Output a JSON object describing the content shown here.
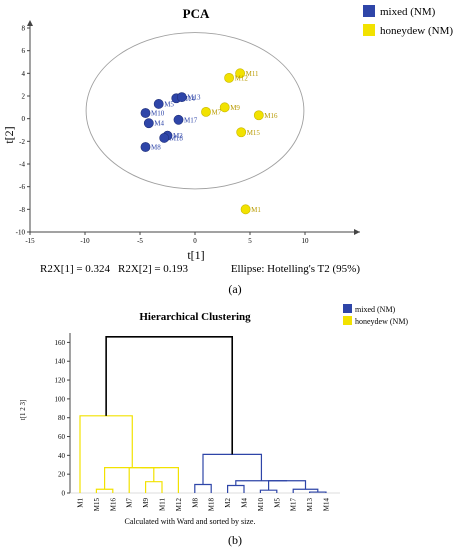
{
  "colors": {
    "mixed": "#2e45a8",
    "honeydew": "#f2e200",
    "honeydew_label": "#b89a00",
    "black": "#000000",
    "axis": "#444444"
  },
  "chart_data": [
    {
      "type": "scatter",
      "title": "PCA",
      "xlabel": "t[1]",
      "ylabel": "t[2]",
      "xlim": [
        -15,
        15
      ],
      "ylim": [
        -10,
        8
      ],
      "xticks": [
        -15,
        -10,
        -5,
        0,
        5,
        10
      ],
      "yticks": [
        8,
        6,
        4,
        2,
        0,
        -2,
        -4,
        -6,
        -8,
        -10
      ],
      "legend": {
        "placement": "top-right",
        "entries": [
          "mixed (NM)",
          "honeydew (NM)"
        ]
      },
      "ellipse_label": "Ellipse: Hotelling's T2 (95%)",
      "stats": [
        "R2X[1] = 0.324",
        "R2X[2] = 0.193"
      ],
      "series": [
        {
          "name": "mixed (NM)",
          "points": [
            {
              "label": "M14",
              "x": -1.7,
              "y": 1.8
            },
            {
              "label": "M13",
              "x": -1.2,
              "y": 1.9
            },
            {
              "label": "M5",
              "x": -3.3,
              "y": 1.3
            },
            {
              "label": "M10",
              "x": -4.5,
              "y": 0.5
            },
            {
              "label": "M4",
              "x": -4.2,
              "y": -0.4
            },
            {
              "label": "M17",
              "x": -1.5,
              "y": -0.1
            },
            {
              "label": "M2",
              "x": -2.5,
              "y": -1.5
            },
            {
              "label": "M18",
              "x": -2.8,
              "y": -1.7
            },
            {
              "label": "M8",
              "x": -4.5,
              "y": -2.5
            }
          ]
        },
        {
          "name": "honeydew (NM)",
          "points": [
            {
              "label": "M11",
              "x": 4.1,
              "y": 4.0
            },
            {
              "label": "M12",
              "x": 3.1,
              "y": 3.6
            },
            {
              "label": "M9",
              "x": 2.7,
              "y": 1.0
            },
            {
              "label": "M7",
              "x": 1.0,
              "y": 0.6
            },
            {
              "label": "M16",
              "x": 5.8,
              "y": 0.3
            },
            {
              "label": "M15",
              "x": 4.2,
              "y": -1.2
            },
            {
              "label": "M1",
              "x": 4.6,
              "y": -8.0
            }
          ]
        }
      ],
      "panel_label": "(a)"
    },
    {
      "type": "dendrogram",
      "title": "Hierarchical Clustering",
      "ylabel": "t[1 2 3]",
      "ylim": [
        0,
        170
      ],
      "yticks": [
        0,
        20,
        40,
        60,
        80,
        100,
        120,
        140,
        160
      ],
      "legend": {
        "placement": "top-right",
        "entries": [
          "mixed (NM)",
          "honeydew (NM)"
        ]
      },
      "leaves": [
        "M1",
        "M15",
        "M16",
        "M7",
        "M9",
        "M11",
        "M12",
        "M8",
        "M18",
        "M2",
        "M4",
        "M10",
        "M5",
        "M17",
        "M13",
        "M14"
      ],
      "leaf_series": [
        "honeydew (NM)",
        "honeydew (NM)",
        "honeydew (NM)",
        "honeydew (NM)",
        "honeydew (NM)",
        "honeydew (NM)",
        "honeydew (NM)",
        "mixed (NM)",
        "mixed (NM)",
        "mixed (NM)",
        "mixed (NM)",
        "mixed (NM)",
        "mixed (NM)",
        "mixed (NM)",
        "mixed (NM)",
        "mixed (NM)"
      ],
      "merges": [
        {
          "a": 1,
          "b": 2,
          "h": 4,
          "g": "honeydew"
        },
        {
          "a": 4,
          "b": 5,
          "h": 12,
          "g": "honeydew"
        },
        {
          "a": 3,
          "b": 17,
          "h": 27,
          "g": "honeydew"
        },
        {
          "a": 18,
          "b": 6,
          "h": 27,
          "g": "honeydew"
        },
        {
          "a": 16,
          "b": 19,
          "h": 27,
          "g": "honeydew"
        },
        {
          "a": 0,
          "b": 20,
          "h": 82,
          "g": "honeydew"
        },
        {
          "a": 7,
          "b": 8,
          "h": 9,
          "g": "mixed"
        },
        {
          "a": 9,
          "b": 10,
          "h": 8,
          "g": "mixed"
        },
        {
          "a": 11,
          "b": 12,
          "h": 3,
          "g": "mixed"
        },
        {
          "a": 14,
          "b": 15,
          "h": 1,
          "g": "mixed"
        },
        {
          "a": 13,
          "b": 25,
          "h": 4,
          "g": "mixed"
        },
        {
          "a": 24,
          "b": 26,
          "h": 13,
          "g": "mixed"
        },
        {
          "a": 23,
          "b": 27,
          "h": 13,
          "g": "mixed"
        },
        {
          "a": 22,
          "b": 28,
          "h": 41,
          "g": "mixed"
        },
        {
          "a": 21,
          "b": 29,
          "h": 166,
          "g": "root"
        }
      ],
      "footnote": "Calculated with Ward and sorted by size.",
      "panel_label": "(b)"
    }
  ]
}
